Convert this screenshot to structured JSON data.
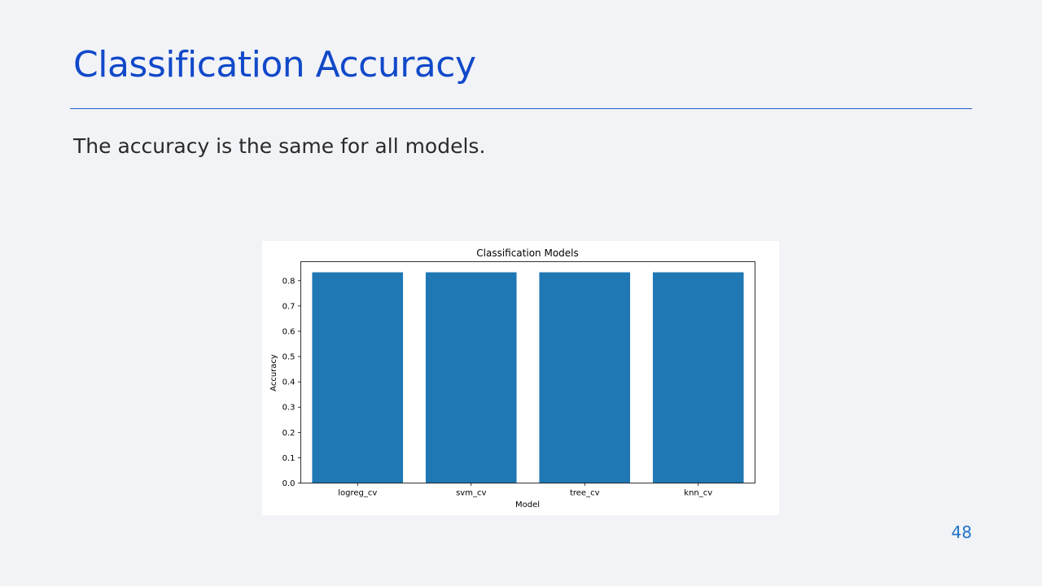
{
  "slide": {
    "title": "Classification Accuracy",
    "body": "The accuracy is the same for all models.",
    "page_number": "48"
  },
  "colors": {
    "title": "#1149c9",
    "rule": "#2a5cc8",
    "body_text": "#2a2a2a",
    "page_number": "#1f73c8",
    "background": "#f2f3f7",
    "bar": "#1f77b4"
  },
  "chart_data": {
    "type": "bar",
    "title": "Classification Models",
    "xlabel": "Model",
    "ylabel": "Accuracy",
    "categories": [
      "logreg_cv",
      "svm_cv",
      "tree_cv",
      "knn_cv"
    ],
    "values": [
      0.833,
      0.833,
      0.833,
      0.833
    ],
    "ylim": [
      0,
      0.875
    ],
    "yticks": [
      0.0,
      0.1,
      0.2,
      0.3,
      0.4,
      0.5,
      0.6,
      0.7,
      0.8
    ],
    "grid": false,
    "legend": "none",
    "bar_color": "#1f77b4"
  }
}
